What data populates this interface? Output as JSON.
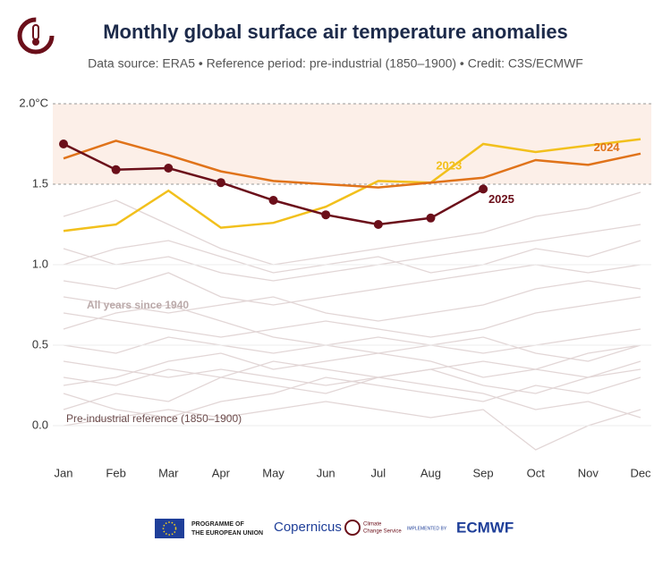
{
  "chart_data": {
    "type": "line",
    "title": "Monthly global surface air temperature anomalies",
    "subtitle": "Data source: ERA5 • Reference period: pre-industrial (1850–1900) • Credit: C3S/ECMWF",
    "categories": [
      "Jan",
      "Feb",
      "Mar",
      "Apr",
      "May",
      "Jun",
      "Jul",
      "Aug",
      "Sep",
      "Oct",
      "Nov",
      "Dec"
    ],
    "ylim": [
      -0.2,
      2.0
    ],
    "yticks": [
      {
        "value": 0,
        "label": "0.0"
      },
      {
        "value": 0.5,
        "label": "0.5"
      },
      {
        "value": 1,
        "label": "1.0"
      },
      {
        "value": 1.5,
        "label": "1.5"
      },
      {
        "value": 2,
        "label": "2.0°C"
      }
    ],
    "band": [
      1.5,
      2.0
    ],
    "series": [
      {
        "name": "2023",
        "color": "#f2c01c",
        "values": [
          1.21,
          1.25,
          1.46,
          1.23,
          1.26,
          1.36,
          1.52,
          1.51,
          1.75,
          1.7,
          1.74,
          1.78
        ]
      },
      {
        "name": "2024",
        "color": "#e0731a",
        "values": [
          1.66,
          1.77,
          1.68,
          1.58,
          1.52,
          1.5,
          1.48,
          1.51,
          1.54,
          1.65,
          1.62,
          1.69
        ]
      },
      {
        "name": "2025",
        "color": "#6b0f1a",
        "values": [
          1.75,
          1.59,
          1.6,
          1.51,
          1.4,
          1.31,
          1.25,
          1.29,
          1.47,
          null,
          null,
          null
        ]
      }
    ],
    "background_color": "#e2d6d6",
    "background_series": [
      {
        "values": [
          0.1,
          0.2,
          0.15,
          0.3,
          0.25,
          0.2,
          0.3,
          0.25,
          0.2,
          0.1,
          0.15,
          0.05
        ]
      },
      {
        "values": [
          0.3,
          0.25,
          0.35,
          0.3,
          0.4,
          0.35,
          0.3,
          0.35,
          0.4,
          0.35,
          0.3,
          0.4
        ]
      },
      {
        "values": [
          0.5,
          0.45,
          0.55,
          0.5,
          0.45,
          0.5,
          0.55,
          0.5,
          0.45,
          0.5,
          0.55,
          0.6
        ]
      },
      {
        "values": [
          0.2,
          0.1,
          0.05,
          0.15,
          0.2,
          0.3,
          0.25,
          0.2,
          0.15,
          0.25,
          0.2,
          0.3
        ]
      },
      {
        "values": [
          0.7,
          0.65,
          0.6,
          0.55,
          0.6,
          0.65,
          0.6,
          0.55,
          0.6,
          0.7,
          0.75,
          0.8
        ]
      },
      {
        "values": [
          0.9,
          0.85,
          0.95,
          0.8,
          0.75,
          0.8,
          0.85,
          0.9,
          0.95,
          1.0,
          0.95,
          1.0
        ]
      },
      {
        "values": [
          1.1,
          1.0,
          1.05,
          0.95,
          0.9,
          0.95,
          1.0,
          1.05,
          1.1,
          1.15,
          1.2,
          1.25
        ]
      },
      {
        "values": [
          0.4,
          0.35,
          0.3,
          0.35,
          0.3,
          0.25,
          0.3,
          0.35,
          0.25,
          0.2,
          0.3,
          0.35
        ]
      },
      {
        "values": [
          0.0,
          0.05,
          0.1,
          0.05,
          0.1,
          0.15,
          0.1,
          0.05,
          0.1,
          -0.15,
          0.0,
          0.1
        ]
      },
      {
        "values": [
          1.3,
          1.4,
          1.25,
          1.1,
          1.0,
          1.05,
          1.1,
          1.15,
          1.2,
          1.3,
          1.35,
          1.45
        ]
      },
      {
        "values": [
          0.6,
          0.7,
          0.75,
          0.65,
          0.55,
          0.5,
          0.45,
          0.5,
          0.55,
          0.45,
          0.4,
          0.5
        ]
      },
      {
        "values": [
          0.8,
          0.75,
          0.7,
          0.75,
          0.8,
          0.7,
          0.65,
          0.7,
          0.75,
          0.85,
          0.9,
          0.85
        ]
      },
      {
        "values": [
          0.25,
          0.3,
          0.4,
          0.45,
          0.35,
          0.4,
          0.45,
          0.4,
          0.3,
          0.35,
          0.45,
          0.5
        ]
      },
      {
        "values": [
          1.0,
          1.1,
          1.15,
          1.05,
          0.95,
          1.0,
          1.05,
          0.95,
          1.0,
          1.1,
          1.05,
          1.15
        ]
      }
    ],
    "annotations": [
      "All years since 1940",
      "Pre-industrial reference (1850–1900)"
    ]
  },
  "footer": {
    "eu": [
      "PROGRAMME OF",
      "THE EUROPEAN UNION"
    ],
    "copernicus": "Copernicus",
    "c3s": [
      "Climate",
      "Change Service"
    ],
    "implemented": "IMPLEMENTED BY",
    "ecmwf": "ECMWF"
  }
}
